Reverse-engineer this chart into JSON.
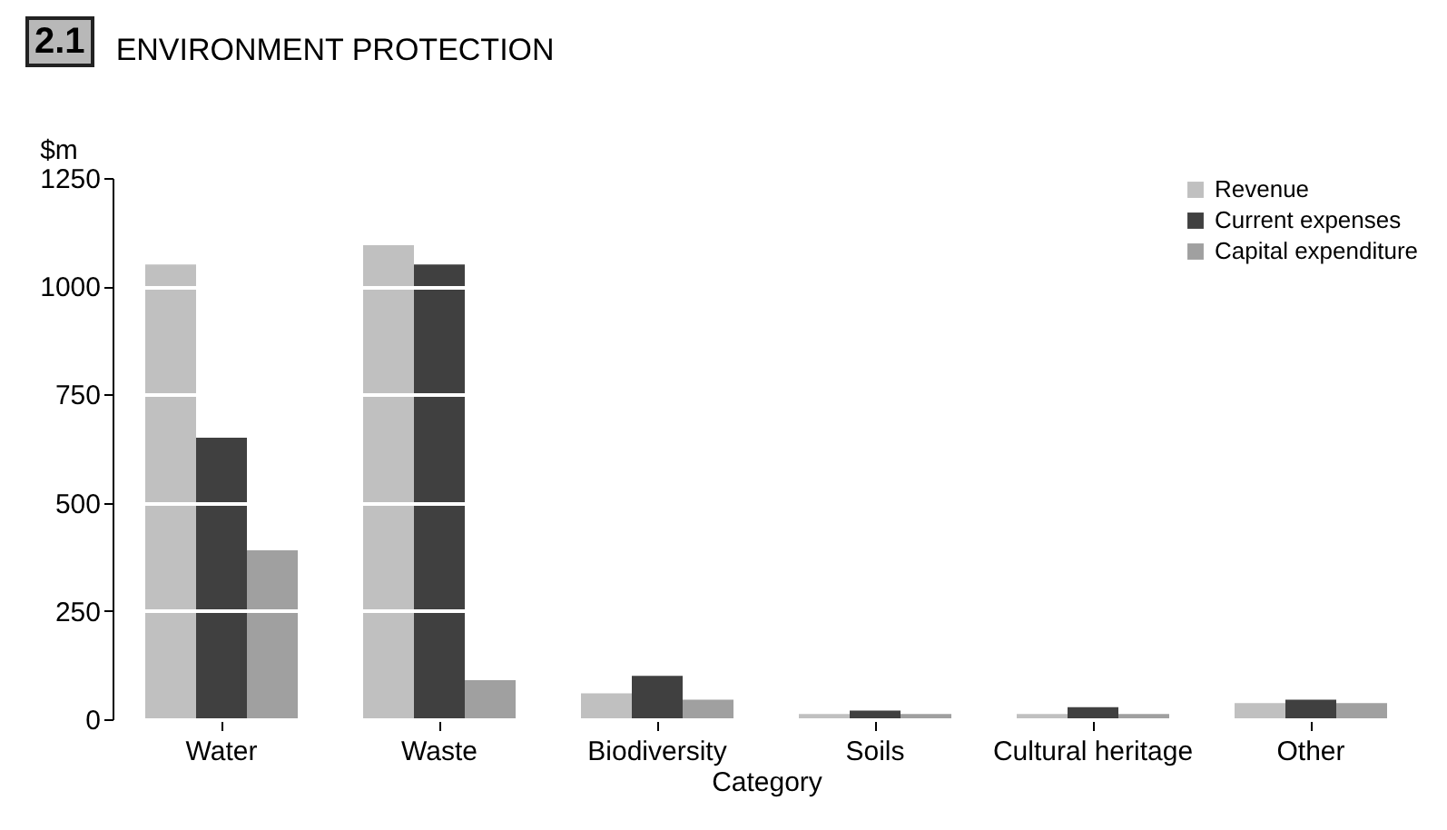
{
  "chart_data": {
    "type": "bar",
    "title": "ENVIRONMENT PROTECTION",
    "annotations": [
      "2.1"
    ],
    "xlabel": "Category",
    "ylabel": "$m",
    "categories": [
      "Water",
      "Waste",
      "Biodiversity",
      "Soils",
      "Cultural heritage",
      "Other"
    ],
    "series": [
      {
        "name": "Revenue",
        "color": "#c0c0c0",
        "values": [
          1050,
          1095,
          60,
          12,
          12,
          37
        ]
      },
      {
        "name": "Current expenses",
        "color": "#404040",
        "values": [
          650,
          1050,
          100,
          20,
          28,
          45
        ]
      },
      {
        "name": "Capital expenditure",
        "color": "#a0a0a0",
        "values": [
          390,
          90,
          45,
          12,
          12,
          37
        ]
      }
    ],
    "ylim": [
      0,
      1250
    ],
    "yticks": [
      0,
      250,
      500,
      750,
      1000,
      1250
    ],
    "grid": "y",
    "legend": "top right"
  }
}
